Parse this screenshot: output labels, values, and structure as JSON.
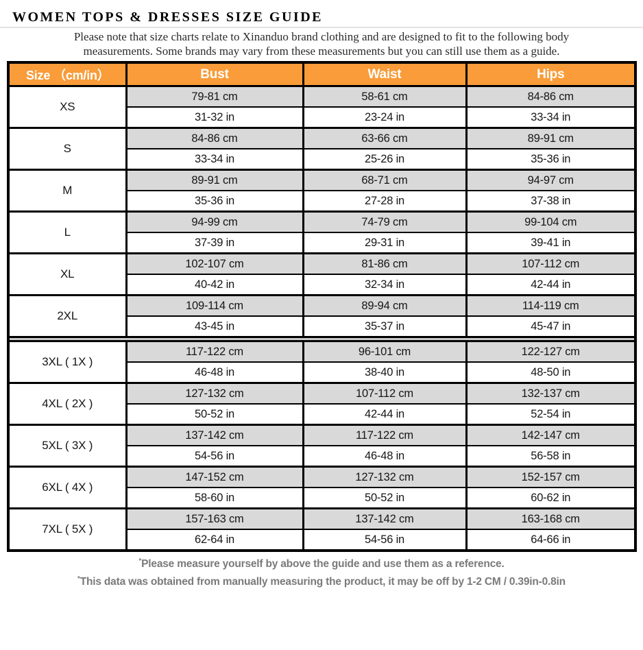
{
  "header": {
    "title": "WOMEN TOPS & DRESSES SIZE GUIDE"
  },
  "intro": {
    "line1": "Please note that size charts relate to  Xinanduo brand clothing and are designed to fit to the following body",
    "line2": "measurements. Some brands may vary from these measurements but you can still use them as a guide."
  },
  "table": {
    "headers": {
      "size": "Size （cm/in）",
      "bust": "Bust",
      "waist": "Waist",
      "hips": "Hips"
    },
    "rows": [
      {
        "size": "XS",
        "bust_cm": "79-81 cm",
        "waist_cm": "58-61 cm",
        "hips_cm": "84-86 cm",
        "bust_in": "31-32 in",
        "waist_in": "23-24 in",
        "hips_in": "33-34 in"
      },
      {
        "size": "S",
        "bust_cm": "84-86 cm",
        "waist_cm": "63-66 cm",
        "hips_cm": "89-91 cm",
        "bust_in": "33-34 in",
        "waist_in": "25-26 in",
        "hips_in": "35-36 in"
      },
      {
        "size": "M",
        "bust_cm": "89-91 cm",
        "waist_cm": "68-71 cm",
        "hips_cm": "94-97 cm",
        "bust_in": "35-36 in",
        "waist_in": "27-28 in",
        "hips_in": "37-38 in"
      },
      {
        "size": "L",
        "bust_cm": "94-99 cm",
        "waist_cm": "74-79 cm",
        "hips_cm": "99-104 cm",
        "bust_in": "37-39 in",
        "waist_in": "29-31 in",
        "hips_in": "39-41 in"
      },
      {
        "size": "XL",
        "bust_cm": "102-107 cm",
        "waist_cm": "81-86 cm",
        "hips_cm": "107-112 cm",
        "bust_in": "40-42 in",
        "waist_in": "32-34 in",
        "hips_in": "42-44 in"
      },
      {
        "size": "2XL",
        "bust_cm": "109-114 cm",
        "waist_cm": "89-94 cm",
        "hips_cm": "114-119 cm",
        "bust_in": "43-45 in",
        "waist_in": "35-37 in",
        "hips_in": "45-47 in"
      },
      {
        "size": "3XL ( 1X )",
        "bust_cm": "117-122 cm",
        "waist_cm": "96-101 cm",
        "hips_cm": "122-127 cm",
        "bust_in": "46-48 in",
        "waist_in": "38-40 in",
        "hips_in": "48-50 in"
      },
      {
        "size": "4XL ( 2X )",
        "bust_cm": "127-132 cm",
        "waist_cm": "107-112 cm",
        "hips_cm": "132-137 cm",
        "bust_in": "50-52 in",
        "waist_in": "42-44 in",
        "hips_in": "52-54 in"
      },
      {
        "size": "5XL ( 3X )",
        "bust_cm": "137-142 cm",
        "waist_cm": "117-122 cm",
        "hips_cm": "142-147 cm",
        "bust_in": "54-56 in",
        "waist_in": "46-48 in",
        "hips_in": "56-58 in"
      },
      {
        "size": "6XL ( 4X )",
        "bust_cm": "147-152 cm",
        "waist_cm": "127-132 cm",
        "hips_cm": "152-157 cm",
        "bust_in": "58-60 in",
        "waist_in": "50-52 in",
        "hips_in": "60-62 in"
      },
      {
        "size": "7XL ( 5X )",
        "bust_cm": "157-163 cm",
        "waist_cm": "137-142 cm",
        "hips_cm": "163-168 cm",
        "bust_in": "62-64 in",
        "waist_in": "54-56 in",
        "hips_in": "64-66 in"
      }
    ]
  },
  "footer": {
    "star": "*",
    "note1": "Please measure yourself by above the guide and use them as a reference.",
    "note2": "This data was obtained from manually measuring the product, it may be off by 1-2 CM / 0.39in-0.8in"
  },
  "colors": {
    "header_bg": "#F99C39",
    "cm_row_bg": "#D9D9D9",
    "border": "#000000",
    "footnote_text": "#7A7A7A"
  }
}
